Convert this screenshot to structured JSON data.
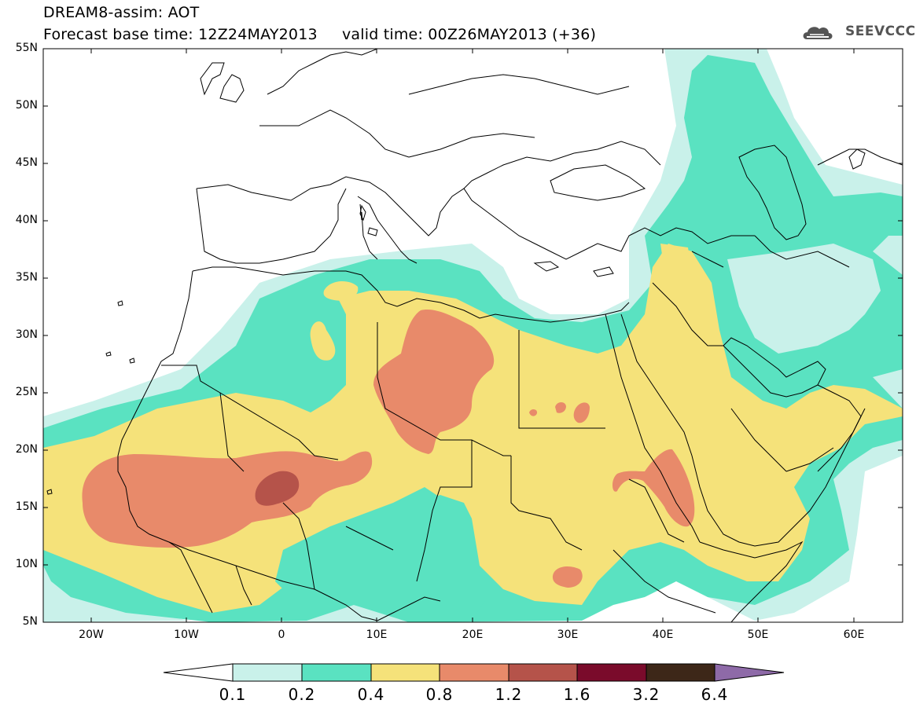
{
  "header": {
    "title_line1": "DREAM8-assim: AOT",
    "title_line2": "Forecast base time: 12Z24MAY2013     valid time: 00Z26MAY2013 (+36)",
    "logo_text": "SEEVCCC"
  },
  "map": {
    "projection": "lat-lon",
    "lon_range": [
      -25,
      65
    ],
    "lat_range": [
      5,
      55
    ],
    "lat_labels": [
      "55N",
      "50N",
      "45N",
      "40N",
      "35N",
      "30N",
      "25N",
      "20N",
      "15N",
      "10N",
      "5N"
    ],
    "lon_labels": [
      "20W",
      "10W",
      "0",
      "10E",
      "20E",
      "30E",
      "40E",
      "50E",
      "60E"
    ]
  },
  "colorbar": {
    "labels": [
      "0.1",
      "0.2",
      "0.4",
      "0.8",
      "1.2",
      "1.6",
      "3.2",
      "6.4"
    ],
    "colors": [
      "#ffffff",
      "#c9f1ea",
      "#5ae2c1",
      "#f5e27a",
      "#e88a6a",
      "#b5534a",
      "#7a0b2b",
      "#3d2718",
      "#8e6aa8"
    ]
  },
  "colors": {
    "level_0_1": "#c9f1ea",
    "level_0_2": "#5ae2c1",
    "level_0_4": "#f5e27a",
    "level_0_8": "#e88a6a",
    "level_1_2": "#b5534a"
  }
}
